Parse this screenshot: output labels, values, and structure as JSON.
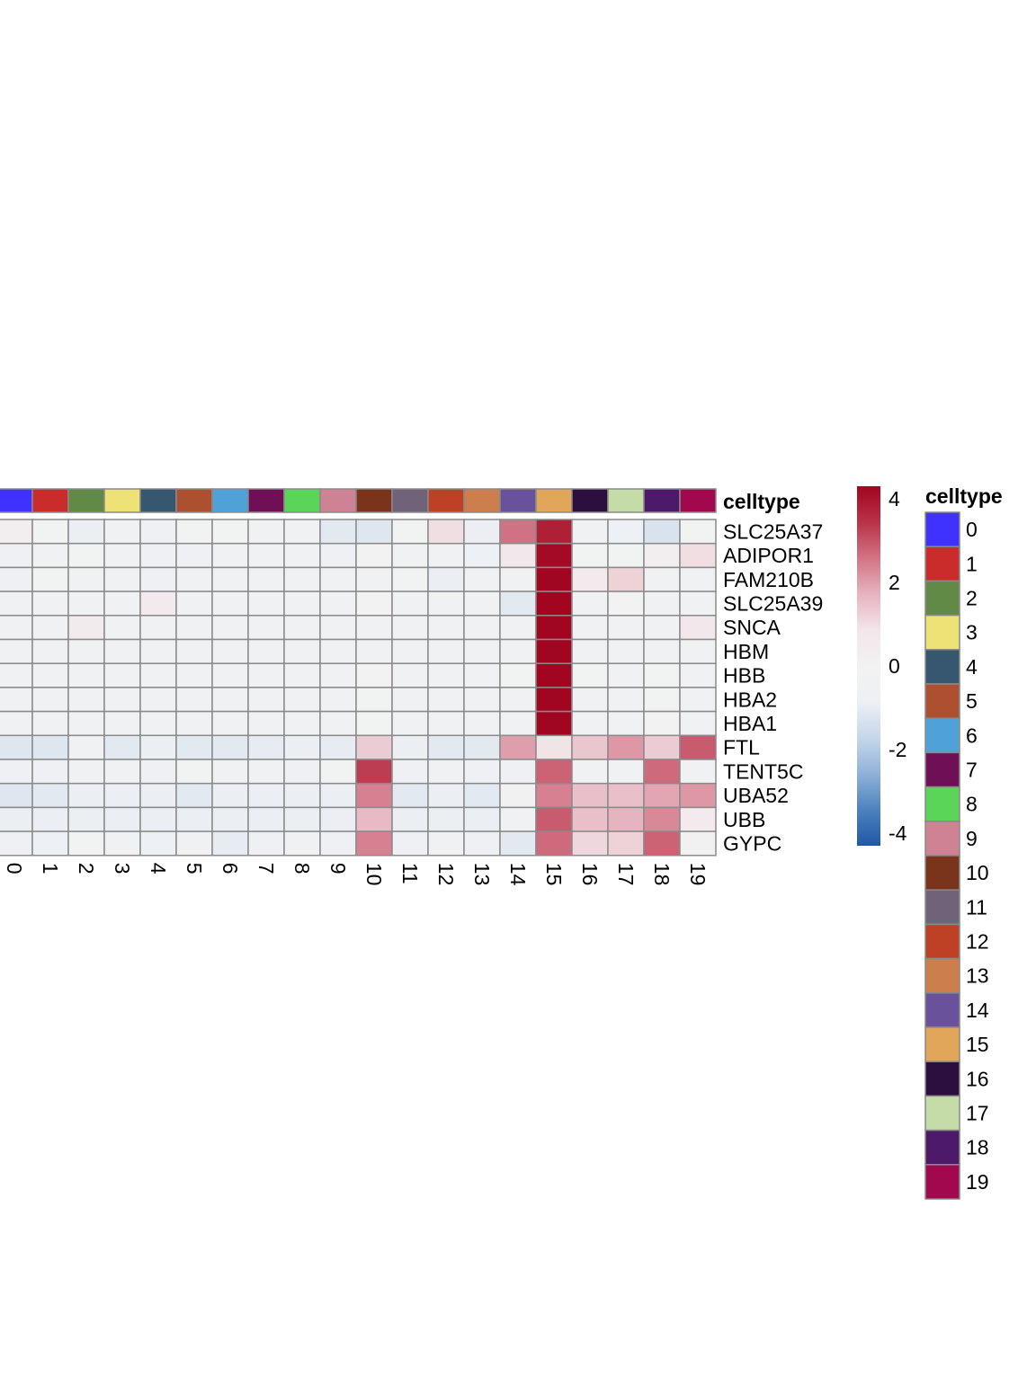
{
  "chart_data": {
    "type": "heatmap",
    "title": "",
    "column_annotation_label": "celltype",
    "columns": [
      "0",
      "1",
      "2",
      "3",
      "4",
      "5",
      "6",
      "7",
      "8",
      "9",
      "10",
      "11",
      "12",
      "13",
      "14",
      "15",
      "16",
      "17",
      "18",
      "19"
    ],
    "rows": [
      "SLC25A37",
      "ADIPOR1",
      "FAM210B",
      "SLC25A39",
      "SNCA",
      "HBM",
      "HBB",
      "HBA2",
      "HBA1",
      "FTL",
      "TENT5C",
      "UBA52",
      "UBB",
      "GYPC"
    ],
    "values": [
      [
        0.3,
        -0.1,
        -0.9,
        -0.6,
        -0.7,
        -0.2,
        -0.2,
        -0.6,
        -0.5,
        -1.1,
        -1.2,
        -0.2,
        1.0,
        -0.9,
        2.6,
        3.8,
        -0.6,
        -0.8,
        -1.3,
        -0.1
      ],
      [
        -0.7,
        -0.6,
        -0.1,
        -0.6,
        -0.7,
        -0.7,
        -0.6,
        -0.6,
        -0.6,
        -0.7,
        0.0,
        -0.6,
        -0.6,
        -0.8,
        0.8,
        4.2,
        -0.1,
        -0.2,
        0.3,
        1.0
      ],
      [
        -0.7,
        -0.2,
        -0.6,
        -0.5,
        -0.7,
        -0.5,
        -0.5,
        -0.5,
        -0.5,
        -0.5,
        -0.5,
        -0.2,
        -0.9,
        -0.5,
        -0.5,
        4.3,
        0.6,
        1.2,
        -0.6,
        -0.3
      ],
      [
        -0.5,
        -0.5,
        -0.3,
        -0.5,
        0.6,
        -0.5,
        -0.5,
        -0.5,
        -0.5,
        -0.6,
        0.0,
        -0.5,
        -0.6,
        -0.5,
        -1.1,
        4.3,
        -0.6,
        0.0,
        -0.3,
        -0.5
      ],
      [
        -0.5,
        -0.5,
        0.5,
        -0.5,
        -0.5,
        -0.5,
        -0.5,
        -0.5,
        -0.5,
        -0.5,
        -0.5,
        -0.5,
        -0.5,
        -0.5,
        -0.5,
        4.3,
        -0.5,
        -0.5,
        -0.5,
        0.7
      ],
      [
        -0.5,
        -0.5,
        -0.5,
        -0.5,
        -0.5,
        -0.5,
        -0.5,
        -0.5,
        -0.5,
        -0.5,
        -0.5,
        -0.5,
        -0.5,
        -0.5,
        -0.5,
        4.3,
        -0.5,
        -0.5,
        -0.5,
        -0.5
      ],
      [
        -0.5,
        -0.5,
        -0.5,
        -0.5,
        -0.5,
        -0.5,
        -0.5,
        -0.5,
        -0.5,
        -0.5,
        0.0,
        -0.5,
        -0.5,
        -0.5,
        -0.2,
        4.3,
        -0.2,
        -0.3,
        -0.2,
        -0.3
      ],
      [
        -0.5,
        -0.5,
        -0.5,
        -0.5,
        -0.5,
        -0.5,
        -0.5,
        -0.5,
        -0.5,
        -0.5,
        -0.1,
        -0.5,
        -0.5,
        -0.5,
        -0.3,
        4.3,
        -0.5,
        -0.5,
        -0.2,
        -0.5
      ],
      [
        -0.5,
        -0.5,
        -0.5,
        -0.5,
        -0.5,
        -0.5,
        -0.5,
        -0.5,
        -0.5,
        -0.5,
        -0.1,
        -0.5,
        -0.5,
        -0.5,
        -0.5,
        4.3,
        -0.5,
        -0.5,
        0.0,
        -0.5
      ],
      [
        -1.2,
        -1.2,
        -0.3,
        -1.1,
        -0.9,
        -1.1,
        -1.1,
        -1.0,
        -0.9,
        -1.0,
        1.3,
        -0.9,
        -1.1,
        -1.1,
        2.0,
        0.9,
        1.4,
        2.1,
        1.3,
        2.9
      ],
      [
        -0.7,
        -0.7,
        -0.6,
        -0.6,
        -0.7,
        -0.2,
        -0.6,
        -0.6,
        -0.7,
        -0.1,
        3.3,
        -0.7,
        -0.6,
        -0.7,
        -0.7,
        2.8,
        -0.6,
        -0.3,
        2.7,
        -0.6
      ],
      [
        -1.2,
        -1.1,
        -0.9,
        -0.9,
        -0.9,
        -1.1,
        -0.9,
        -0.9,
        -0.9,
        -0.9,
        2.4,
        -1.1,
        -0.9,
        -1.1,
        0.1,
        2.4,
        1.5,
        1.5,
        1.9,
        2.1
      ],
      [
        -0.9,
        -0.9,
        -0.9,
        -0.9,
        -0.9,
        -0.9,
        -0.9,
        -0.9,
        -0.9,
        -0.9,
        1.6,
        -0.9,
        -0.9,
        -0.9,
        -0.5,
        2.9,
        1.5,
        1.7,
        2.3,
        0.6
      ],
      [
        -0.7,
        -0.8,
        -0.2,
        -0.5,
        -0.8,
        -0.5,
        -1.0,
        -0.7,
        -0.6,
        -0.7,
        2.4,
        -0.7,
        -0.5,
        -0.7,
        -1.1,
        2.7,
        1.1,
        1.2,
        2.8,
        0.1
      ]
    ],
    "celltype_colors": [
      "#3f32fe",
      "#c92c2a",
      "#628a47",
      "#eee276",
      "#37566f",
      "#ac5030",
      "#4fa2d7",
      "#6f1056",
      "#5bd45a",
      "#cf8293",
      "#7b341c",
      "#706379",
      "#bf4125",
      "#cd7e4d",
      "#6a519c",
      "#e1a659",
      "#2c0f3f",
      "#c5dca8",
      "#4d1a6b",
      "#a1084e"
    ],
    "colorscale": {
      "min": -4.3,
      "max": 4.3,
      "stops": [
        "#2058a6",
        "#4d82bf",
        "#8fb1d8",
        "#c6d6ea",
        "#edf0f4",
        "#f2f2f2",
        "#f2e6e9",
        "#e6b3bf",
        "#d27385",
        "#b83347",
        "#a2051f"
      ],
      "ticks": [
        4,
        2,
        0,
        -2,
        -4
      ],
      "tick_labels": [
        "4",
        "2",
        "0",
        "-2",
        "-4"
      ]
    },
    "legend": {
      "title": "celltype",
      "labels": [
        "0",
        "1",
        "2",
        "3",
        "4",
        "5",
        "6",
        "7",
        "8",
        "9",
        "10",
        "11",
        "12",
        "13",
        "14",
        "15",
        "16",
        "17",
        "18",
        "19"
      ]
    }
  }
}
